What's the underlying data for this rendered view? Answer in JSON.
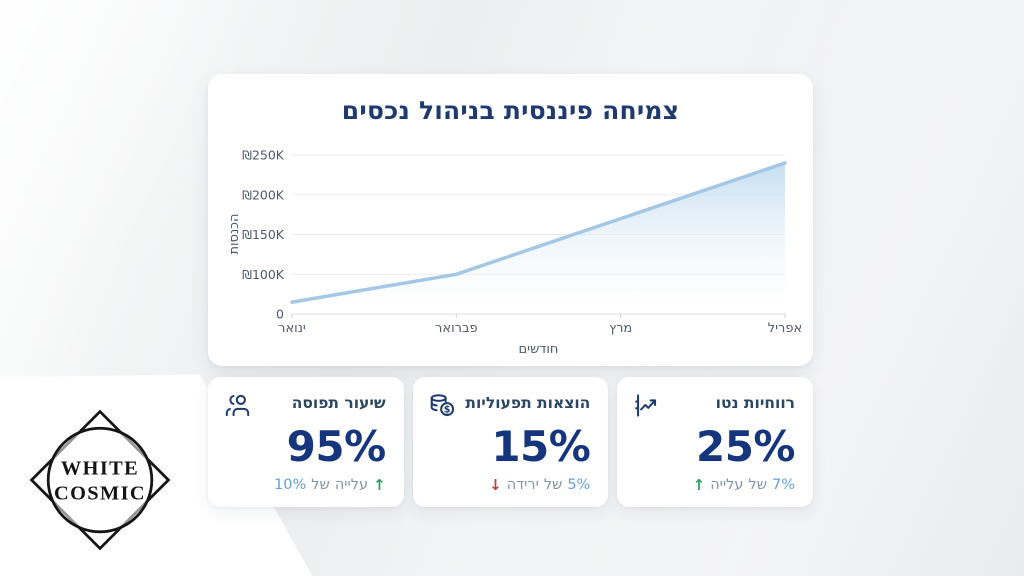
{
  "colors": {
    "navy_title": "#1e3a6e",
    "navy_value": "#15367c",
    "axis_text": "#4c5b6b",
    "grid_line": "#e8ebee",
    "baseline": "#d7dbe0",
    "chart_line": "#a3c7e5",
    "area_top": "#c3dcf0",
    "area_bottom": "#ffffff",
    "muted_word": "#8195a9",
    "pct_blue": "#63a1d8",
    "up_green": "#27a45f",
    "down_red": "#b9413c",
    "card_bg": "#ffffff"
  },
  "chart_card": {
    "title": "צמיחה פיננסית בניהול נכסים"
  },
  "chart_data": {
    "type": "area",
    "title": "צמיחה פיננסית בניהול נכסים",
    "x": [
      "ינואר",
      "פברואר",
      "מרץ",
      "אפריל"
    ],
    "series": [
      {
        "name": "הכנסות",
        "values": [
          30000,
          100000,
          170000,
          240000
        ]
      }
    ],
    "xlabel": "חודשים",
    "ylabel": "הכנסות",
    "y_ticks": [
      {
        "value": 0,
        "label": "0"
      },
      {
        "value": 100000,
        "label": "₪100K"
      },
      {
        "value": 150000,
        "label": "₪150K"
      },
      {
        "value": 200000,
        "label": "₪200K"
      },
      {
        "value": 250000,
        "label": "₪250K"
      }
    ],
    "y_tick_spacing": "equal",
    "ylim": [
      0,
      250000
    ],
    "grid": true,
    "legend": false
  },
  "kpi_cards": [
    {
      "title": "שיעור תפוסה",
      "icon": "users-icon",
      "value": "95%",
      "change_text": "עלייה של 10%",
      "change_direction": "up",
      "tokens": [
        {
          "t": "10%",
          "r": "pct"
        },
        {
          "t": "של",
          "r": "word"
        },
        {
          "t": "עלייה",
          "r": "word"
        },
        {
          "t": "↑",
          "r": "up"
        }
      ]
    },
    {
      "title": "הוצאות תפעוליות",
      "icon": "coins-icon",
      "value": "15%",
      "change_text": "ירידה של 5%",
      "change_direction": "down",
      "tokens": [
        {
          "t": "↓",
          "r": "down"
        },
        {
          "t": "ירידה",
          "r": "word"
        },
        {
          "t": "של",
          "r": "word"
        },
        {
          "t": "5%",
          "r": "pct"
        }
      ]
    },
    {
      "title": "רווחיות נטו",
      "icon": "trend-chart-icon",
      "value": "25%",
      "change_text": "עלייה של 7%",
      "change_direction": "up",
      "tokens": [
        {
          "t": "↑",
          "r": "up"
        },
        {
          "t": "עלייה",
          "r": "word"
        },
        {
          "t": "של",
          "r": "word"
        },
        {
          "t": "7%",
          "r": "pct"
        }
      ]
    }
  ],
  "logo": {
    "line1": "WHITE",
    "line2": "COSMIC"
  }
}
